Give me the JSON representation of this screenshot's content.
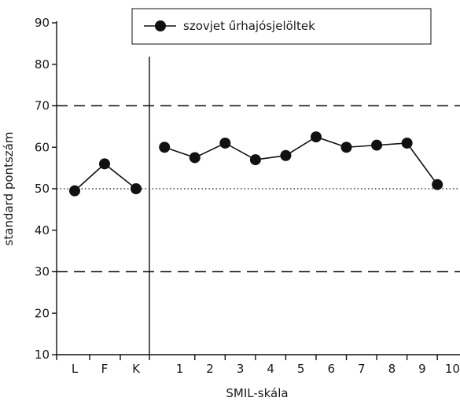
{
  "chart_data": {
    "type": "line",
    "xlabel": "SMIL-skála",
    "ylabel": "standard pontszám",
    "ylim": [
      10,
      90
    ],
    "yticks": [
      10,
      20,
      30,
      40,
      50,
      60,
      70,
      80,
      90
    ],
    "categories": [
      "L",
      "F",
      "K",
      "1",
      "2",
      "3",
      "4",
      "5",
      "6",
      "7",
      "8",
      "9",
      "10"
    ],
    "groups": [
      {
        "categories": [
          "L",
          "F",
          "K"
        ]
      },
      {
        "categories": [
          "1",
          "2",
          "3",
          "4",
          "5",
          "6",
          "7",
          "8",
          "9",
          "10"
        ]
      }
    ],
    "series": [
      {
        "name": "szovjet űrhajósjelöltek",
        "color": "#111111",
        "segments": [
          {
            "x": [
              "L",
              "F",
              "K"
            ],
            "values": [
              49.5,
              56,
              50
            ]
          },
          {
            "x": [
              "0.5",
              "1.5",
              "2.5",
              "3.5",
              "4.5",
              "5.5",
              "6.5",
              "7.5",
              "8.5",
              "9.5"
            ],
            "values": [
              60,
              57.5,
              61,
              57,
              58,
              62.5,
              60,
              60.5,
              61,
              51
            ]
          }
        ]
      }
    ],
    "reference_lines": [
      {
        "y": 70,
        "style": "dashed"
      },
      {
        "y": 50,
        "style": "dotted"
      },
      {
        "y": 30,
        "style": "dashed"
      }
    ],
    "legend": {
      "position": "top-center",
      "marker": "circle-line"
    },
    "grid": false,
    "colors": {
      "ink": "#111111",
      "background": "#ffffff"
    }
  }
}
